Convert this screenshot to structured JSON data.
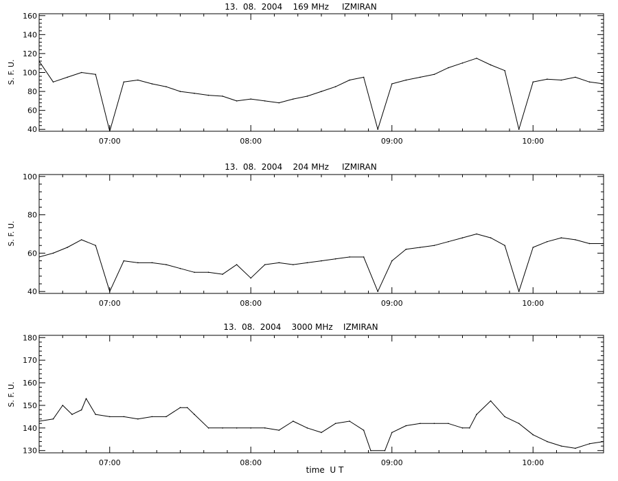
{
  "chart_data": [
    {
      "type": "line",
      "title": "13.  08.  2004    169 MHz     IZMIRAN",
      "ylabel": "S. F. U.",
      "xlabel": "",
      "xlim": [
        "06:30",
        "10:30"
      ],
      "ylim": [
        38,
        162
      ],
      "yticks": [
        40,
        60,
        80,
        100,
        120,
        140,
        160
      ],
      "xtick_labels": [
        "07:00",
        "08:00",
        "09:00",
        "10:00"
      ],
      "grid": false,
      "series": [
        {
          "x": [
            "06:30",
            "06:36",
            "06:42",
            "06:48",
            "06:54",
            "07:00",
            "07:06",
            "07:12",
            "07:18",
            "07:24",
            "07:30",
            "07:36",
            "07:42",
            "07:48",
            "07:54",
            "08:00",
            "08:06",
            "08:12",
            "08:18",
            "08:24",
            "08:30",
            "08:36",
            "08:42",
            "08:48",
            "08:54",
            "09:00",
            "09:06",
            "09:12",
            "09:18",
            "09:24",
            "09:30",
            "09:36",
            "09:42",
            "09:48",
            "09:54",
            "10:00",
            "10:06",
            "10:12",
            "10:18",
            "10:24",
            "10:30"
          ],
          "values": [
            112,
            90,
            95,
            100,
            98,
            38,
            90,
            92,
            88,
            85,
            80,
            78,
            76,
            75,
            70,
            72,
            70,
            68,
            72,
            75,
            80,
            85,
            92,
            95,
            40,
            88,
            92,
            95,
            98,
            105,
            110,
            115,
            108,
            102,
            40,
            90,
            93,
            92,
            95,
            90,
            88
          ]
        }
      ]
    },
    {
      "type": "line",
      "title": "13.  08.  2004    204 MHz     IZMIRAN",
      "ylabel": "S. F. U.",
      "xlabel": "",
      "xlim": [
        "06:30",
        "10:30"
      ],
      "ylim": [
        39,
        101
      ],
      "yticks": [
        40,
        60,
        80,
        100
      ],
      "xtick_labels": [
        "07:00",
        "08:00",
        "09:00",
        "10:00"
      ],
      "grid": false,
      "series": [
        {
          "x": [
            "06:30",
            "06:36",
            "06:42",
            "06:48",
            "06:54",
            "07:00",
            "07:06",
            "07:12",
            "07:18",
            "07:24",
            "07:30",
            "07:36",
            "07:42",
            "07:48",
            "07:54",
            "08:00",
            "08:06",
            "08:12",
            "08:18",
            "08:24",
            "08:30",
            "08:36",
            "08:42",
            "08:48",
            "08:54",
            "09:00",
            "09:06",
            "09:12",
            "09:18",
            "09:24",
            "09:30",
            "09:36",
            "09:42",
            "09:48",
            "09:54",
            "10:00",
            "10:06",
            "10:12",
            "10:18",
            "10:24",
            "10:30"
          ],
          "values": [
            58,
            60,
            63,
            67,
            64,
            40,
            56,
            55,
            55,
            54,
            52,
            50,
            50,
            49,
            54,
            47,
            54,
            55,
            54,
            55,
            56,
            57,
            58,
            58,
            40,
            56,
            62,
            63,
            64,
            66,
            68,
            70,
            68,
            64,
            40,
            63,
            66,
            68,
            67,
            65,
            65
          ]
        }
      ]
    },
    {
      "type": "line",
      "title": "13.  08.  2004    3000 MHz    IZMIRAN",
      "ylabel": "S. F. U.",
      "xlabel": "time  U T",
      "xlim": [
        "06:30",
        "10:30"
      ],
      "ylim": [
        129,
        181
      ],
      "yticks": [
        130,
        140,
        150,
        160,
        170,
        180
      ],
      "xtick_labels": [
        "07:00",
        "08:00",
        "09:00",
        "10:00"
      ],
      "grid": false,
      "series": [
        {
          "x": [
            "06:30",
            "06:36",
            "06:40",
            "06:44",
            "06:48",
            "06:50",
            "06:54",
            "07:00",
            "07:06",
            "07:12",
            "07:18",
            "07:24",
            "07:30",
            "07:33",
            "07:36",
            "07:42",
            "07:48",
            "07:54",
            "08:00",
            "08:06",
            "08:12",
            "08:18",
            "08:24",
            "08:30",
            "08:36",
            "08:42",
            "08:48",
            "08:51",
            "08:57",
            "09:00",
            "09:06",
            "09:12",
            "09:18",
            "09:24",
            "09:30",
            "09:33",
            "09:36",
            "09:42",
            "09:48",
            "09:54",
            "10:00",
            "10:06",
            "10:12",
            "10:18",
            "10:24",
            "10:30"
          ],
          "values": [
            143,
            144,
            150,
            146,
            148,
            153,
            146,
            145,
            145,
            144,
            145,
            145,
            149,
            149,
            146,
            140,
            140,
            140,
            140,
            140,
            139,
            143,
            140,
            138,
            142,
            143,
            139,
            130,
            130,
            138,
            141,
            142,
            142,
            142,
            140,
            140,
            146,
            152,
            145,
            142,
            137,
            134,
            132,
            131,
            133,
            134
          ]
        }
      ]
    }
  ]
}
